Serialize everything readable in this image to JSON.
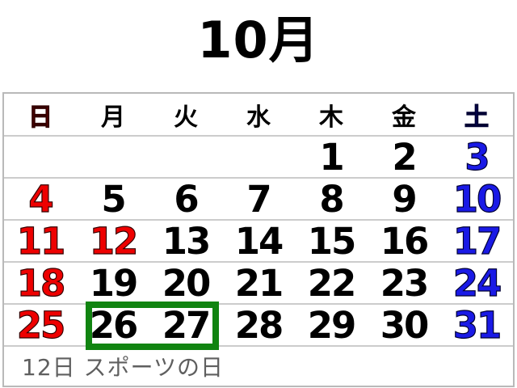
{
  "title": "10月",
  "weekdays": [
    {
      "label": "日",
      "type": "sunday"
    },
    {
      "label": "月",
      "type": "weekday"
    },
    {
      "label": "火",
      "type": "weekday"
    },
    {
      "label": "水",
      "type": "weekday"
    },
    {
      "label": "木",
      "type": "weekday"
    },
    {
      "label": "金",
      "type": "weekday"
    },
    {
      "label": "土",
      "type": "saturday"
    }
  ],
  "weeks": [
    [
      "",
      "",
      "",
      "",
      "1",
      "2",
      "3"
    ],
    [
      "4",
      "5",
      "6",
      "7",
      "8",
      "9",
      "10"
    ],
    [
      "11",
      "12",
      "13",
      "14",
      "15",
      "16",
      "17"
    ],
    [
      "18",
      "19",
      "20",
      "21",
      "22",
      "23",
      "24"
    ],
    [
      "25",
      "26",
      "27",
      "28",
      "29",
      "30",
      "31"
    ]
  ],
  "holidays": [
    "12"
  ],
  "highlight": {
    "days": [
      "26",
      "27"
    ]
  },
  "footer": {
    "note": "12日 スポーツの日"
  },
  "colors": {
    "sunday_red": "#ee0000",
    "saturday_blue": "#1a1ae6",
    "weekday_black": "#000000",
    "highlight_green": "#118411",
    "note_gray": "#5f5f5f",
    "grid_gray": "#cccccc"
  }
}
